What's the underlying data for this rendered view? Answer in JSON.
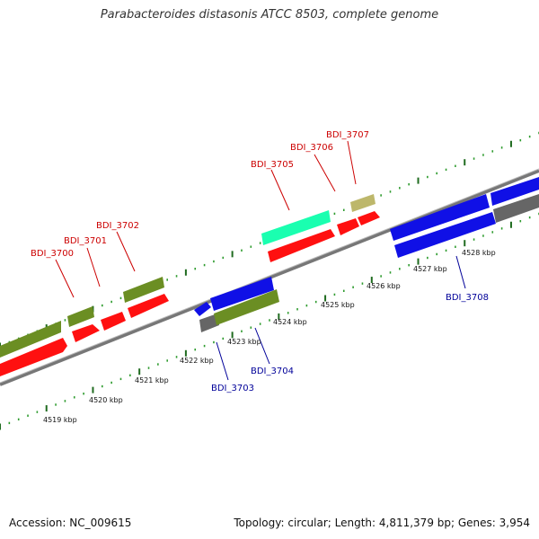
{
  "title": "Parabacteroides distasonis ATCC 8503, complete genome",
  "footer": {
    "accession": "Accession: NC_009615",
    "topology": "Topology: circular; Length: 4,811,379 bp; Genes: 3,954"
  },
  "colors": {
    "axis": "#888888",
    "label_red": "#cc0000",
    "label_blue": "#000099",
    "tick_dark_green": "#1f6b1f",
    "tick_light_green": "#2e9b2e",
    "gene_red": "#ff1010",
    "gene_blue": "#1010e6",
    "gene_olive": "#6b8e23",
    "gene_gray": "#666666",
    "gene_teal": "#1affb0",
    "gene_khaki": "#bdb76b"
  },
  "kbp_labels": [
    "4519 kbp",
    "4520 kbp",
    "4521 kbp",
    "4522 kbp",
    "4523 kbp",
    "4524 kbp",
    "4525 kbp",
    "4526 kbp",
    "4527 kbp",
    "4528 kbp"
  ],
  "gene_labels_top": [
    "BDI_3700",
    "BDI_3701",
    "BDI_3702",
    "BDI_3705",
    "BDI_3706",
    "BDI_3707"
  ],
  "gene_labels_bottom": [
    "BDI_3703",
    "BDI_3704",
    "BDI_3708"
  ]
}
